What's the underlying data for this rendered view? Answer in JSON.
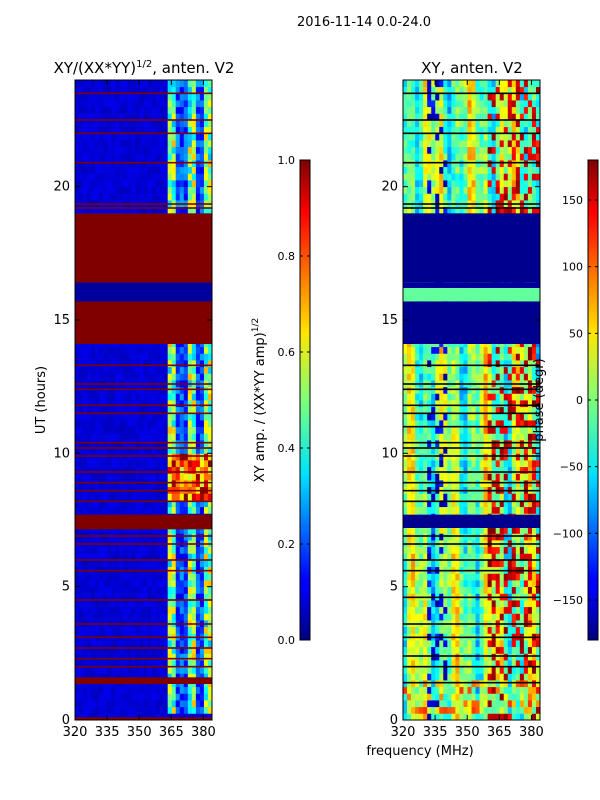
{
  "suptitle": "2016-11-14 0.0-24.0",
  "chart_data": [
    {
      "type": "heatmap",
      "title": "XY/(XX*YY)",
      "title_exponent": "1/2",
      "title_suffix": ", anten. V2",
      "ylabel": "UT (hours)",
      "xlim": [
        320,
        384
      ],
      "ylim": [
        0,
        24
      ],
      "xticks": [
        320,
        335,
        350,
        365,
        380
      ],
      "yticks": [
        0,
        5,
        10,
        15,
        20
      ],
      "colorbar": {
        "label": "XY amp. / (XX*YY amp)",
        "label_exponent": "1/2",
        "range": [
          0.0,
          1.0
        ],
        "ticks": [
          "0.0",
          "0.2",
          "0.4",
          "0.6",
          "0.8",
          "1.0"
        ]
      },
      "background_value": 0.06,
      "bands": [
        {
          "t0": 0.0,
          "t1": 0.1,
          "v": 1.0
        },
        {
          "t0": 1.35,
          "t1": 1.6,
          "v": 1.0
        },
        {
          "t0": 7.15,
          "t1": 7.7,
          "v": 1.0
        },
        {
          "t0": 14.1,
          "t1": 15.7,
          "v": 1.0
        },
        {
          "t0": 16.4,
          "t1": 19.0,
          "v": 1.0
        },
        {
          "t0": 15.7,
          "t1": 16.4,
          "v": 0.03
        }
      ],
      "flag_lines": [
        2.0,
        2.3,
        2.7,
        3.1,
        3.6,
        4.5,
        5.6,
        6.0,
        6.6,
        6.9,
        8.2,
        8.6,
        8.9,
        9.3,
        9.9,
        10.2,
        10.4,
        11.5,
        11.8,
        12.4,
        12.6,
        13.3,
        19.2,
        19.35,
        20.9,
        22.0,
        22.5,
        23.5
      ],
      "active_freq_range": [
        363,
        384
      ],
      "active_time_ranges": [
        [
          0.1,
          7.1
        ],
        [
          7.7,
          14.1
        ],
        [
          19.0,
          24.0
        ]
      ]
    },
    {
      "type": "heatmap",
      "title": "XY, anten. V2",
      "ylabel": "",
      "xlabel": "frequency (MHz)",
      "xlim": [
        320,
        384
      ],
      "ylim": [
        0,
        24
      ],
      "xticks": [
        320,
        335,
        350,
        365,
        380
      ],
      "yticks": [
        0,
        5,
        10,
        15,
        20
      ],
      "colorbar": {
        "label": "phase (degr)",
        "range": [
          -180,
          180
        ],
        "ticks": [
          "150",
          "100",
          "50",
          "0",
          "−50",
          "−100",
          "−150"
        ],
        "tick_values": [
          150,
          100,
          50,
          0,
          -50,
          -100,
          -150
        ]
      },
      "bands": [
        {
          "t0": 7.2,
          "t1": 7.7,
          "v": -175
        },
        {
          "t0": 14.1,
          "t1": 15.7,
          "v": -175
        },
        {
          "t0": 15.7,
          "t1": 16.2,
          "v": -10
        },
        {
          "t0": 16.2,
          "t1": 16.4,
          "v": -170
        },
        {
          "t0": 16.4,
          "t1": 19.0,
          "v": -175
        }
      ],
      "flag_lines": [
        1.4,
        2.0,
        2.4,
        3.1,
        3.6,
        4.6,
        5.6,
        6.0,
        6.6,
        6.9,
        8.2,
        8.6,
        8.9,
        9.3,
        9.9,
        10.2,
        10.4,
        11.0,
        11.5,
        11.8,
        12.4,
        12.6,
        13.3,
        19.2,
        19.35,
        20.9,
        22.0,
        22.5,
        23.5
      ]
    }
  ]
}
